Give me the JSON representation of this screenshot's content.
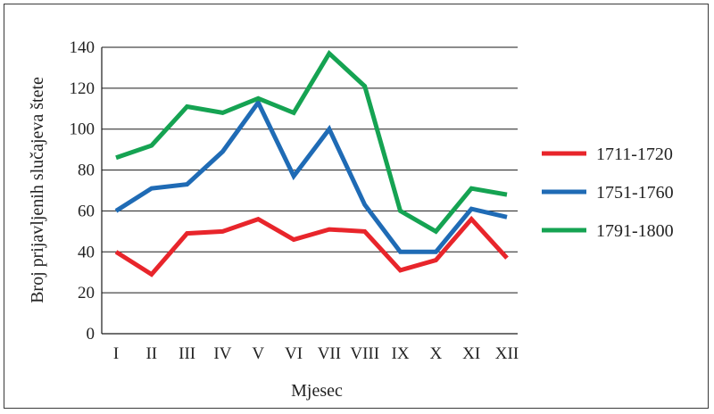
{
  "chart_data": {
    "type": "line",
    "xlabel": "Mjesec",
    "ylabel": "Broj prijavljenih slučajeva štete",
    "categories": [
      "I",
      "II",
      "III",
      "IV",
      "V",
      "VI",
      "VII",
      "VIII",
      "IX",
      "X",
      "XI",
      "XII"
    ],
    "ylim": [
      0,
      140
    ],
    "yticks": [
      0,
      20,
      40,
      60,
      80,
      100,
      120,
      140
    ],
    "grid": "horizontal",
    "legend": "right",
    "series": [
      {
        "name": "1711-1720",
        "color": "#e8252b",
        "values": [
          40,
          29,
          49,
          50,
          56,
          46,
          51,
          50,
          31,
          36,
          56,
          37
        ]
      },
      {
        "name": "1751-1760",
        "color": "#1f6bb5",
        "values": [
          60,
          71,
          73,
          89,
          113,
          77,
          100,
          63,
          40,
          40,
          61,
          57
        ]
      },
      {
        "name": "1791-1800",
        "color": "#15a352",
        "values": [
          86,
          92,
          111,
          108,
          115,
          108,
          137,
          121,
          60,
          50,
          71,
          68
        ]
      }
    ]
  }
}
